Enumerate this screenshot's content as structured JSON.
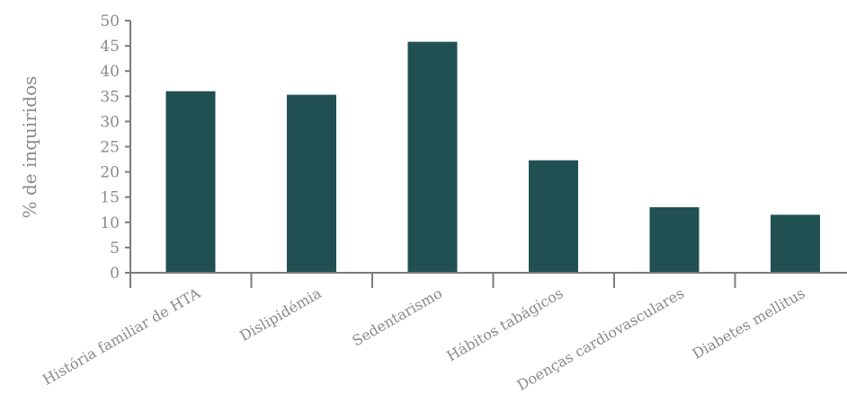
{
  "chart_data": {
    "type": "bar",
    "title": "",
    "xlabel": "",
    "ylabel": "% de inquiridos",
    "categories": [
      "História familiar de HTA",
      "Dislipidémia",
      "Sedentarismo",
      "Hábitos tabágicos",
      "Doenças cardiovasculares",
      "Diabetes mellitus"
    ],
    "values": [
      36,
      35.3,
      45.8,
      22.3,
      13,
      11.5
    ],
    "ylim": [
      0,
      50
    ],
    "yticks": [
      0,
      5,
      10,
      15,
      20,
      25,
      30,
      35,
      40,
      45,
      50
    ],
    "grid": false,
    "legend": "none",
    "bar_color": "#215052",
    "axis_color": "#7b7b7b",
    "text_color": "#8a8a8a"
  }
}
